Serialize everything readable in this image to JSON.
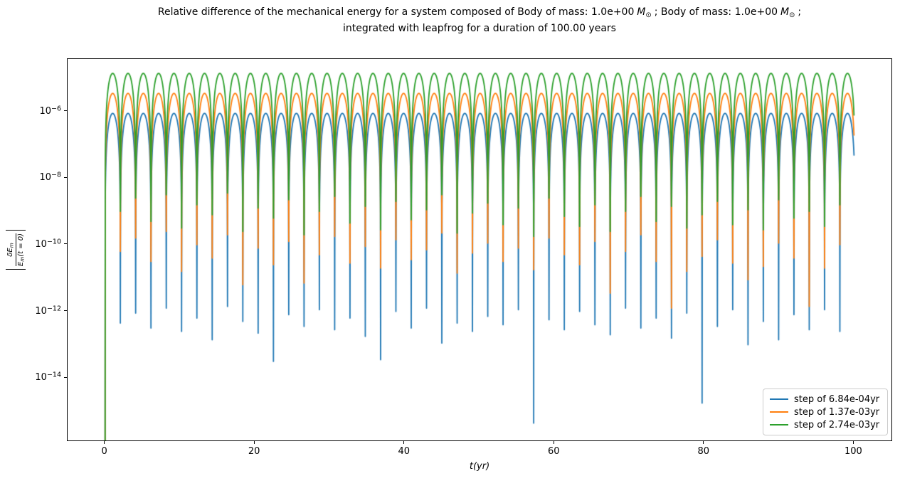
{
  "title": {
    "seg_a": "Relative difference of the mechanical energy for a system composed of Body of mass: 1.0e+00",
    "mass_symbol": "M",
    "sun_symbol": "⊙",
    "seg_b": "; Body of mass: 1.0e+00",
    "seg_c": ";",
    "line2": "integrated with leapfrog for a duration of 100.00 years"
  },
  "ylabel": {
    "numerator_main": "δE",
    "numerator_sub": "m",
    "denominator_main": "E",
    "denominator_sub": "m",
    "denominator_rest": "(t = 0)"
  },
  "xlabel": {
    "text": "t(yr)"
  },
  "legend": {
    "items": [
      {
        "label": "step of 6.84e-04yr"
      },
      {
        "label": "step of 1.37e-03yr"
      },
      {
        "label": "step of 2.74e-03yr"
      }
    ]
  },
  "chart_data": {
    "type": "line",
    "title": "Relative difference of the mechanical energy for a system composed of Body of mass: 1.0e+00 M⊙ ; Body of mass: 1.0e+00 M⊙ ; integrated with leapfrog for a duration of 100.00 years",
    "xlabel": "t(yr)",
    "ylabel": "|δEm/Em(t=0)|",
    "xscale": "linear",
    "yscale": "log",
    "xlim": [
      -5,
      105
    ],
    "ylim_log10": [
      -15.87,
      -4.43
    ],
    "xticks": [
      0,
      20,
      40,
      60,
      80,
      100
    ],
    "ytick_exponents": [
      -6,
      -8,
      -10,
      -12,
      -14
    ],
    "duration_yr": 100,
    "period_yr": 2.044,
    "n_humps": 49,
    "series": [
      {
        "name": "step of 6.84e-04yr",
        "step_yr": 0.000684,
        "color": "#1f77b4",
        "peak_log10": -6.06,
        "trough_log10": [
          -20,
          -12.35,
          -12.05,
          -12.5,
          -11.9,
          -12.6,
          -12.2,
          -12.85,
          -11.85,
          -12.3,
          -12.65,
          -13.5,
          -12.1,
          -12.45,
          -11.95,
          -12.55,
          -12.2,
          -12.75,
          -13.45,
          -12.0,
          -12.5,
          -11.9,
          -12.95,
          -12.35,
          -12.6,
          -12.15,
          -12.4,
          -11.95,
          -15.35,
          -12.25,
          -12.55,
          -12.0,
          -12.4,
          -12.7,
          -11.9,
          -12.5,
          -12.2,
          -12.8,
          -12.05,
          -14.75,
          -12.45,
          -11.95,
          -13.0,
          -12.3,
          -12.85,
          -12.1,
          -12.55,
          -11.95,
          -12.6
        ]
      },
      {
        "name": "step of 1.37e-03yr",
        "step_yr": 0.00137,
        "color": "#ff7f0e",
        "peak_log10": -5.46,
        "trough_log10": [
          -20,
          -10.2,
          -9.8,
          -10.5,
          -9.6,
          -10.8,
          -10.0,
          -10.4,
          -9.7,
          -11.2,
          -10.1,
          -10.6,
          -9.9,
          -11.15,
          -10.3,
          -9.75,
          -10.55,
          -10.05,
          -10.7,
          -9.85,
          -10.45,
          -10.15,
          -9.65,
          -10.85,
          -10.25,
          -9.95,
          -10.5,
          -10.1,
          -10.75,
          -9.8,
          -10.3,
          -10.6,
          -9.9,
          -11.45,
          -10.2,
          -9.7,
          -10.5,
          -11.9,
          -10.8,
          -10.35,
          -9.85,
          -10.55,
          -11.05,
          -10.65,
          -9.95,
          -10.4,
          -11.85,
          -10.7,
          -10.0
        ]
      },
      {
        "name": "step of 2.74e-03yr",
        "step_yr": 0.00274,
        "color": "#2ca02c",
        "peak_log10": -4.86,
        "trough_log10": [
          -20,
          -9.0,
          -8.6,
          -9.3,
          -8.5,
          -9.5,
          -8.8,
          -9.1,
          -8.45,
          -9.6,
          -8.9,
          -9.2,
          -8.65,
          -9.7,
          -9.0,
          -8.55,
          -9.35,
          -8.85,
          -9.55,
          -8.7,
          -9.25,
          -8.95,
          -8.5,
          -9.65,
          -9.05,
          -8.75,
          -9.4,
          -8.9,
          -9.75,
          -8.6,
          -9.15,
          -9.45,
          -8.8,
          -9.6,
          -9.0,
          -8.55,
          -9.3,
          -8.85,
          -9.5,
          -9.1,
          -8.7,
          -9.4,
          -8.95,
          -9.55,
          -8.65,
          -9.2,
          -9.0,
          -9.45,
          -8.8
        ]
      }
    ]
  }
}
